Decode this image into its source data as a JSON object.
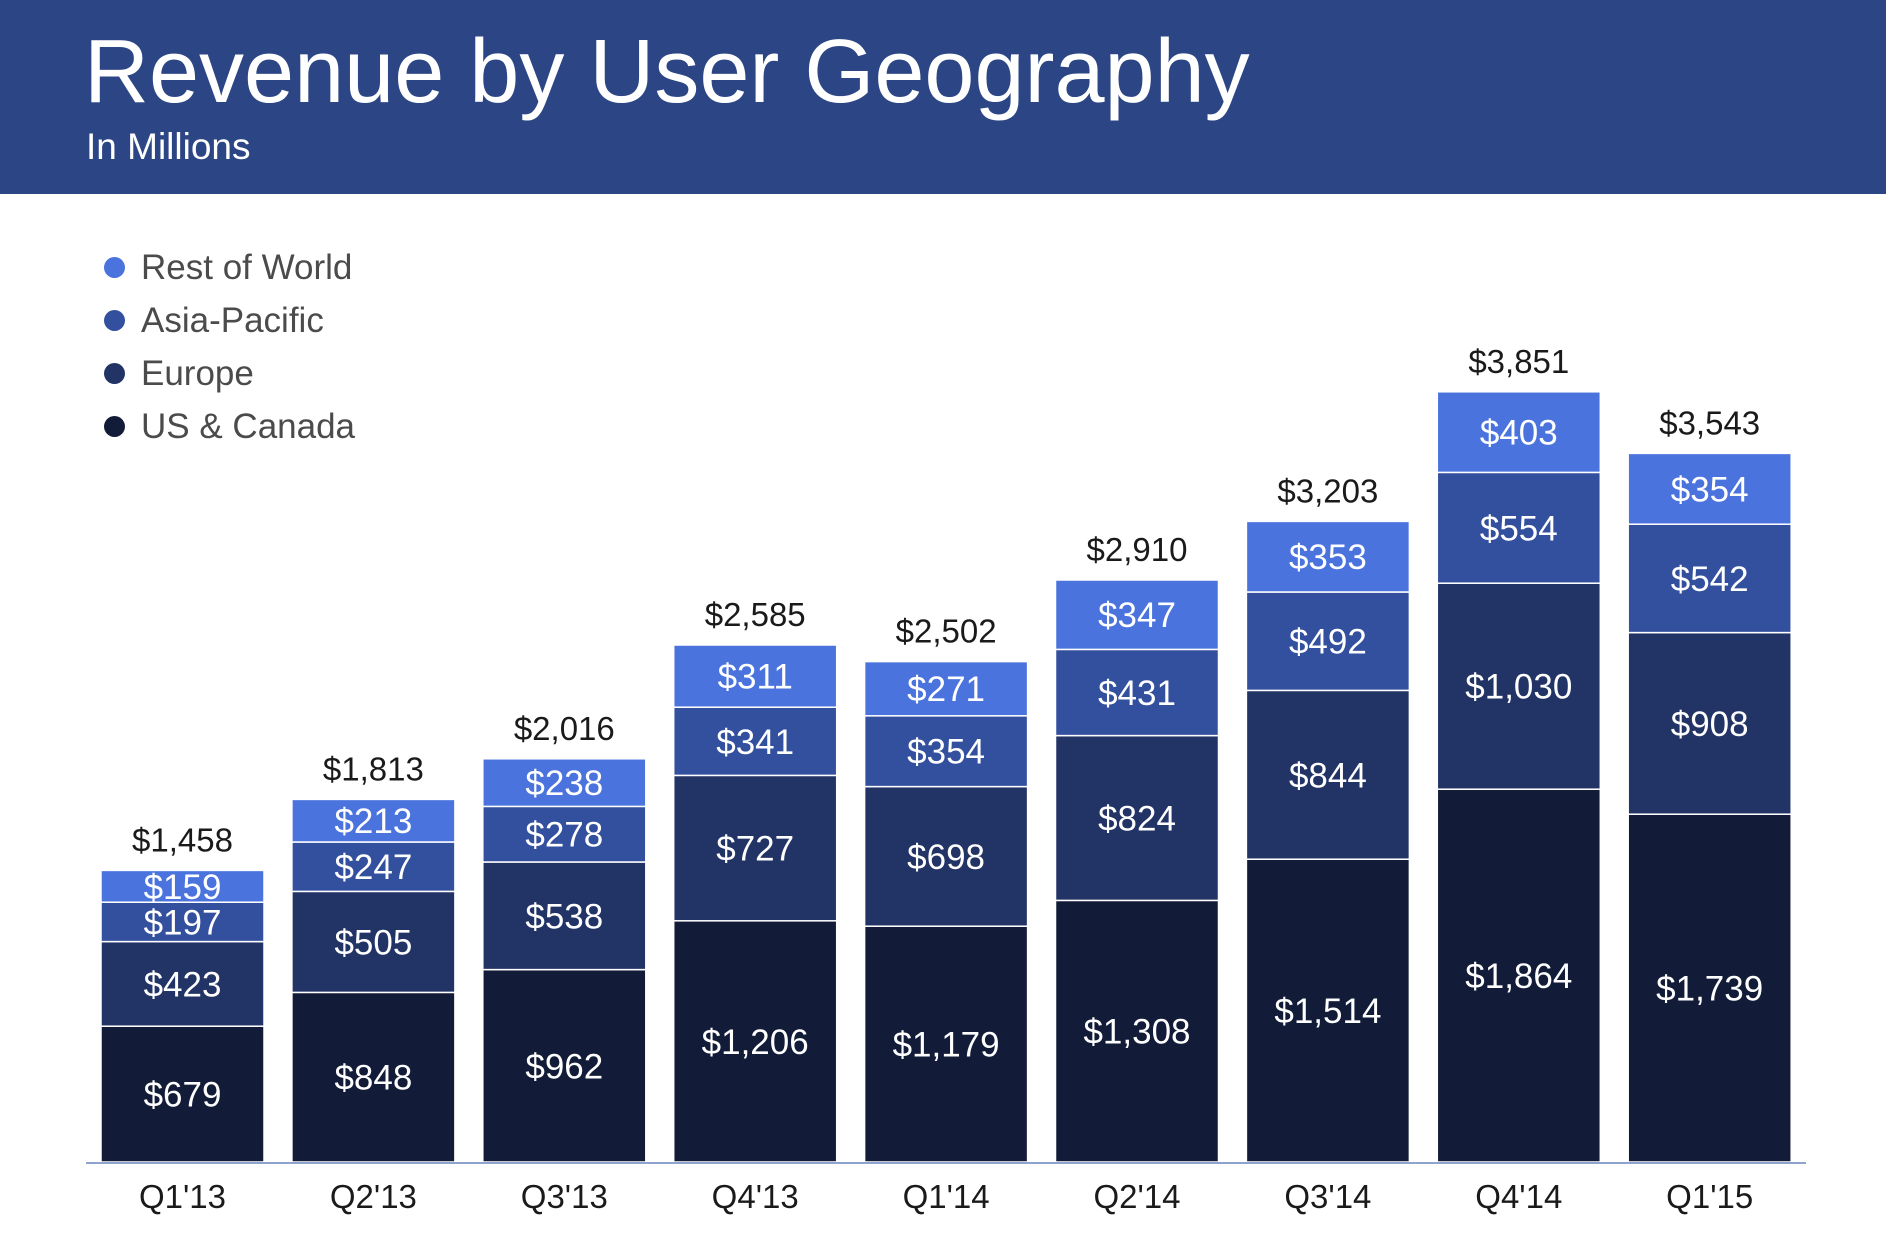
{
  "header": {
    "title": "Revenue by User Geography",
    "subtitle": "In Millions",
    "background_color": "#2c4584"
  },
  "legend": {
    "placement": "top-left",
    "items": [
      {
        "label": "Rest of World",
        "color": "#4a73de"
      },
      {
        "label": "Asia-Pacific",
        "color": "#33509e"
      },
      {
        "label": "Europe",
        "color": "#223366"
      },
      {
        "label": "US & Canada",
        "color": "#121c38"
      }
    ]
  },
  "chart_data": {
    "type": "bar",
    "stacked": true,
    "title": "Revenue by User Geography",
    "subtitle": "In Millions",
    "categories": [
      "Q1'13",
      "Q2'13",
      "Q3'13",
      "Q4'13",
      "Q1'14",
      "Q2'14",
      "Q3'14",
      "Q4'14",
      "Q1'15"
    ],
    "series": [
      {
        "name": "US & Canada",
        "color": "#121c38",
        "values": [
          679,
          848,
          962,
          1206,
          1179,
          1308,
          1514,
          1864,
          1739
        ]
      },
      {
        "name": "Europe",
        "color": "#223366",
        "values": [
          423,
          505,
          538,
          727,
          698,
          824,
          844,
          1030,
          908
        ]
      },
      {
        "name": "Asia-Pacific",
        "color": "#33509e",
        "values": [
          197,
          247,
          278,
          341,
          354,
          431,
          492,
          554,
          542
        ]
      },
      {
        "name": "Rest of World",
        "color": "#4a73de",
        "values": [
          159,
          213,
          238,
          311,
          271,
          347,
          353,
          403,
          354
        ]
      }
    ],
    "segment_labels": [
      [
        "$679",
        "$848",
        "$962",
        "$1,206",
        "$1,179",
        "$1,308",
        "$1,514",
        "$1,864",
        "$1,739"
      ],
      [
        "$423",
        "$505",
        "$538",
        "$727",
        "$698",
        "$824",
        "$844",
        "$1,030",
        "$908"
      ],
      [
        "$197",
        "$247",
        "$278",
        "$341",
        "$354",
        "$431",
        "$492",
        "$554",
        "$542"
      ],
      [
        "$159",
        "$213",
        "$238",
        "$311",
        "$271",
        "$347",
        "$353",
        "$403",
        "$354"
      ]
    ],
    "totals": [
      1458,
      1813,
      2016,
      2585,
      2502,
      2910,
      3203,
      3851,
      3543
    ],
    "total_labels": [
      "$1,458",
      "$1,813",
      "$2,016",
      "$2,585",
      "$2,502",
      "$2,910",
      "$3,203",
      "$3,851",
      "$3,543"
    ],
    "ylim": [
      0,
      4000
    ],
    "grid": false,
    "y_axis_visible": false,
    "baseline_color": "#8fa3cf",
    "separator_color": "#ffffff"
  }
}
